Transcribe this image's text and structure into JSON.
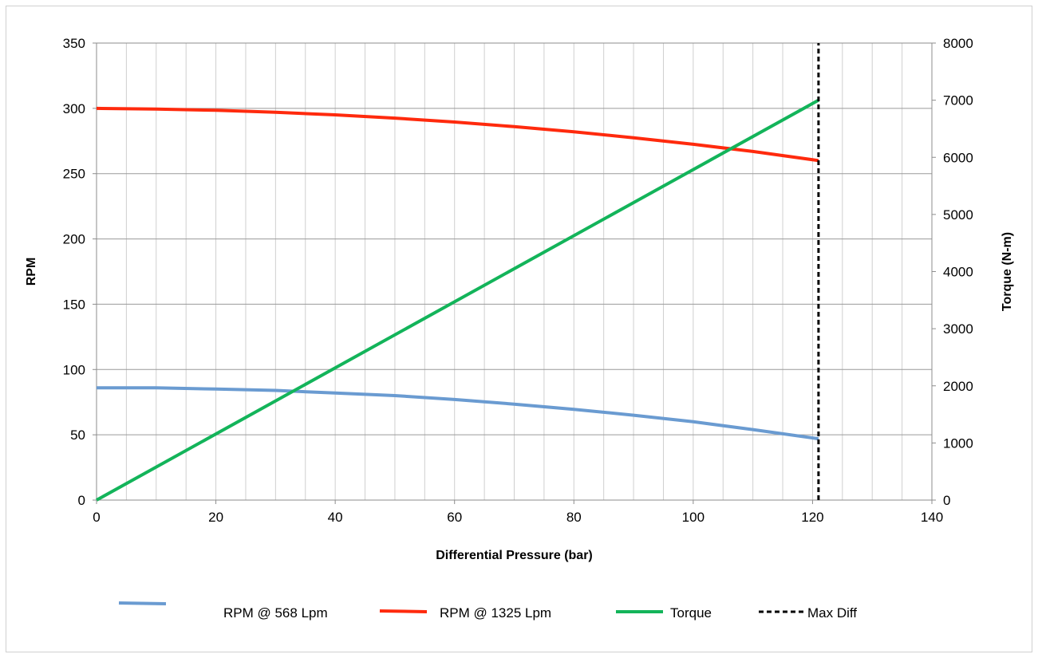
{
  "chart_data": {
    "type": "line",
    "title": "",
    "xlabel": "Differential Pressure (bar)",
    "ylabel": "RPM",
    "y2label": "Torque (N-m)",
    "xlim": [
      0,
      140
    ],
    "ylim": [
      0,
      350
    ],
    "y2lim": [
      0,
      8000
    ],
    "x_ticks": [
      "0",
      "20",
      "40",
      "60",
      "80",
      "100",
      "120",
      "140"
    ],
    "y_ticks": [
      "0",
      "50",
      "100",
      "150",
      "200",
      "250",
      "300",
      "350"
    ],
    "y2_ticks": [
      "0",
      "1000",
      "2000",
      "3000",
      "4000",
      "5000",
      "6000",
      "7000",
      "8000"
    ],
    "grid": true,
    "legend_position": "bottom",
    "series": [
      {
        "name": "RPM @ 568 Lpm",
        "axis": "left",
        "color": "#6a9bd1",
        "x": [
          0,
          10,
          20,
          30,
          40,
          50,
          60,
          70,
          80,
          90,
          100,
          110,
          121
        ],
        "y": [
          86,
          86,
          85,
          84,
          82,
          80,
          77,
          73.5,
          69.5,
          65,
          60,
          54,
          47
        ]
      },
      {
        "name": "RPM @ 1325 Lpm",
        "axis": "left",
        "color": "#ff2a0d",
        "x": [
          0,
          10,
          20,
          30,
          40,
          50,
          60,
          70,
          80,
          90,
          100,
          110,
          121
        ],
        "y": [
          300,
          299.5,
          298.5,
          297,
          295,
          292.5,
          289.5,
          286,
          282,
          277.5,
          272.5,
          267,
          260
        ]
      },
      {
        "name": "Torque",
        "axis": "right",
        "color": "#13b45a",
        "x": [
          0,
          121
        ],
        "y": [
          0,
          7000
        ]
      },
      {
        "name": "Max Diff",
        "axis": "left",
        "color": "#000000",
        "dashed": true,
        "x": [
          121,
          121
        ],
        "y": [
          0,
          350
        ]
      }
    ]
  }
}
